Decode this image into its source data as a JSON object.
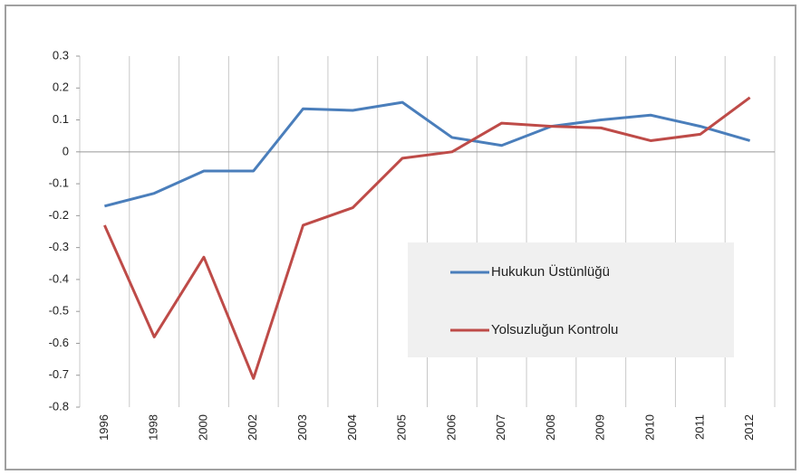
{
  "chart_data": {
    "type": "line",
    "categories": [
      "1996",
      "1998",
      "2000",
      "2002",
      "2003",
      "2004",
      "2005",
      "2006",
      "2007",
      "2008",
      "2009",
      "2010",
      "2011",
      "2012"
    ],
    "series": [
      {
        "name": "Hukukun Üstünlüğü",
        "color": "#4a7ebb",
        "values": [
          -0.17,
          -0.13,
          -0.06,
          -0.06,
          0.135,
          0.13,
          0.155,
          0.045,
          0.02,
          0.08,
          0.1,
          0.115,
          0.08,
          0.035
        ]
      },
      {
        "name": "Yolsuzluğun Kontrolu",
        "color": "#be4b48",
        "values": [
          -0.23,
          -0.58,
          -0.33,
          -0.71,
          -0.23,
          -0.175,
          -0.02,
          0.0,
          0.09,
          0.08,
          0.075,
          0.035,
          0.055,
          0.17
        ]
      }
    ],
    "ylim": [
      -0.8,
      0.3
    ],
    "yticks": [
      0.3,
      0.2,
      0.1,
      0,
      -0.1,
      -0.2,
      -0.3,
      -0.4,
      -0.5,
      -0.6,
      -0.7,
      -0.8
    ],
    "grid": true,
    "legend_position": "right"
  }
}
